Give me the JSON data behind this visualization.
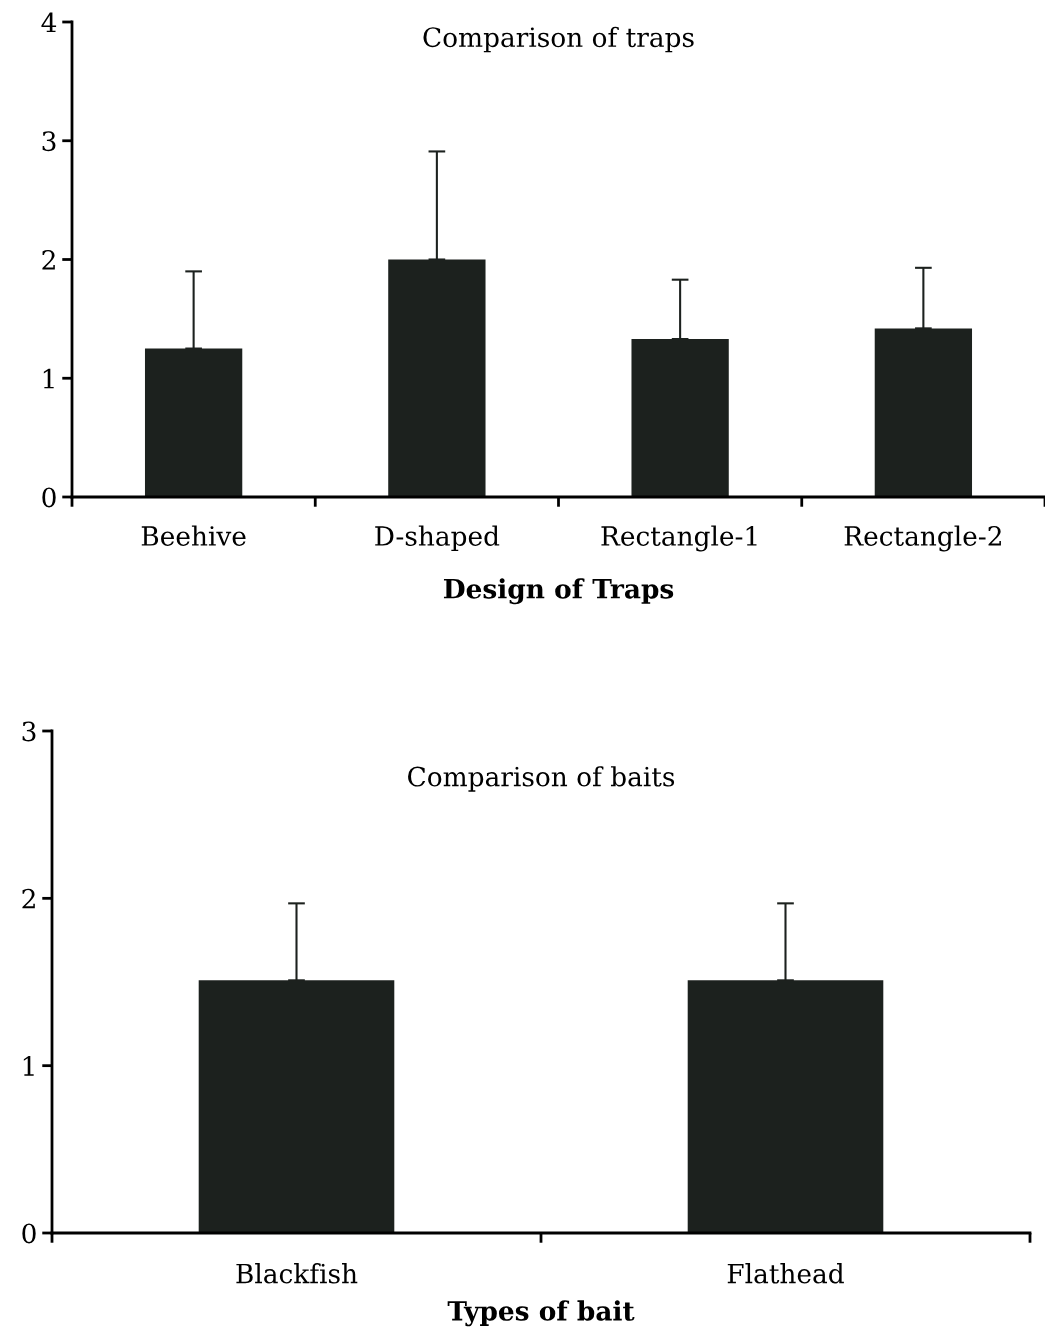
{
  "chart_data": [
    {
      "type": "bar",
      "title": "Comparison of traps",
      "xlabel": "Design of Traps",
      "categories": [
        "Beehive",
        "D-shaped",
        "Rectangle-1",
        "Rectangle-2"
      ],
      "values": [
        1.25,
        2.0,
        1.33,
        1.42
      ],
      "errors": [
        [
          1.25,
          1.9
        ],
        [
          2.0,
          2.91
        ],
        [
          1.33,
          1.83
        ],
        [
          1.42,
          1.93
        ]
      ],
      "color": "#1c211e",
      "ylim": [
        0,
        4
      ],
      "yticks": [
        0,
        1,
        2,
        3,
        4
      ],
      "grid": false
    },
    {
      "type": "bar",
      "title": "Comparison of baits",
      "xlabel": "Types of bait",
      "categories": [
        "Blackfish",
        "Flathead"
      ],
      "values": [
        1.51,
        1.51
      ],
      "errors": [
        [
          1.51,
          1.97
        ],
        [
          1.51,
          1.97
        ]
      ],
      "color": "#1c211e",
      "ylim": [
        0,
        3
      ],
      "yticks": [
        0,
        1,
        2,
        3
      ],
      "grid": false
    }
  ]
}
